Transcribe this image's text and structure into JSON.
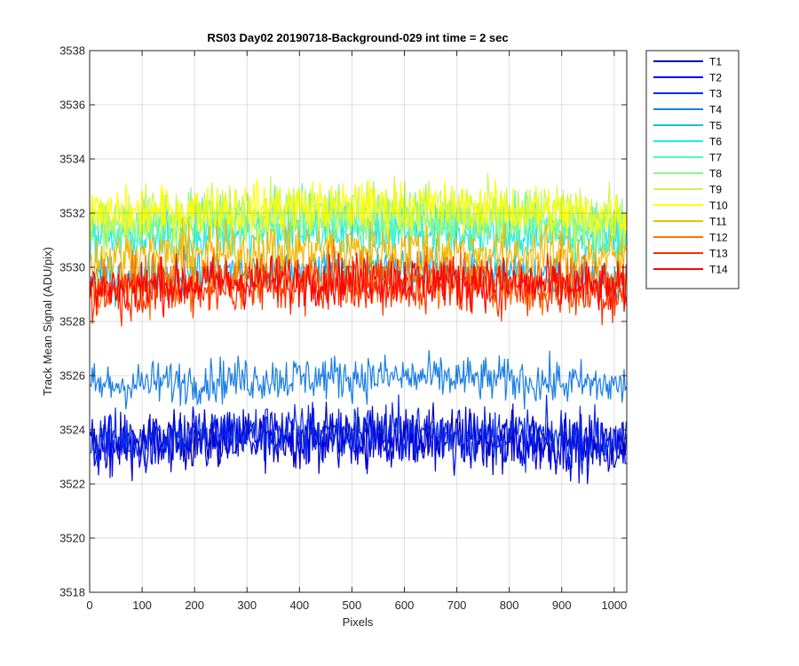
{
  "chart_data": {
    "type": "line",
    "title": "RS03 Day02 20190718-Background-029 int time = 2 sec",
    "xlabel": "Pixels",
    "ylabel": "Track Mean Signal (ADU/pix)",
    "xlim": [
      0,
      1024
    ],
    "ylim": [
      3518,
      3538
    ],
    "xticks": [
      0,
      100,
      200,
      300,
      400,
      500,
      600,
      700,
      800,
      900,
      1000
    ],
    "yticks": [
      3518,
      3520,
      3522,
      3524,
      3526,
      3528,
      3530,
      3532,
      3534,
      3536,
      3538
    ],
    "grid": true,
    "legend_position": "outside-top-right",
    "x_range": [
      1,
      1024
    ],
    "series": [
      {
        "name": "T1",
        "color": "#0000b3",
        "mean": 3523.4,
        "peak_to_peak": 3.8
      },
      {
        "name": "T2",
        "color": "#0000e6",
        "mean": 3523.3,
        "peak_to_peak": 4.0
      },
      {
        "name": "T3",
        "color": "#0a2be8",
        "mean": 3523.6,
        "peak_to_peak": 3.8
      },
      {
        "name": "T4",
        "color": "#1a7fe6",
        "mean": 3525.6,
        "peak_to_peak": 3.0
      },
      {
        "name": "T5",
        "color": "#1fb8e8",
        "mean": 3529.6,
        "peak_to_peak": 3.0
      },
      {
        "name": "T6",
        "color": "#22e8e8",
        "mean": 3531.0,
        "peak_to_peak": 3.4
      },
      {
        "name": "T7",
        "color": "#4ff5c4",
        "mean": 3531.3,
        "peak_to_peak": 3.6
      },
      {
        "name": "T8",
        "color": "#8cf78c",
        "mean": 3531.6,
        "peak_to_peak": 3.6
      },
      {
        "name": "T9",
        "color": "#c8f754",
        "mean": 3531.8,
        "peak_to_peak": 3.8
      },
      {
        "name": "T10",
        "color": "#ffff00",
        "mean": 3531.9,
        "peak_to_peak": 3.4
      },
      {
        "name": "T11",
        "color": "#f5b800",
        "mean": 3530.3,
        "peak_to_peak": 3.6
      },
      {
        "name": "T12",
        "color": "#ff7000",
        "mean": 3529.3,
        "peak_to_peak": 3.8
      },
      {
        "name": "T13",
        "color": "#ff3000",
        "mean": 3529.0,
        "peak_to_peak": 3.6
      },
      {
        "name": "T14",
        "color": "#ff0000",
        "mean": 3529.2,
        "peak_to_peak": 3.4
      }
    ]
  }
}
